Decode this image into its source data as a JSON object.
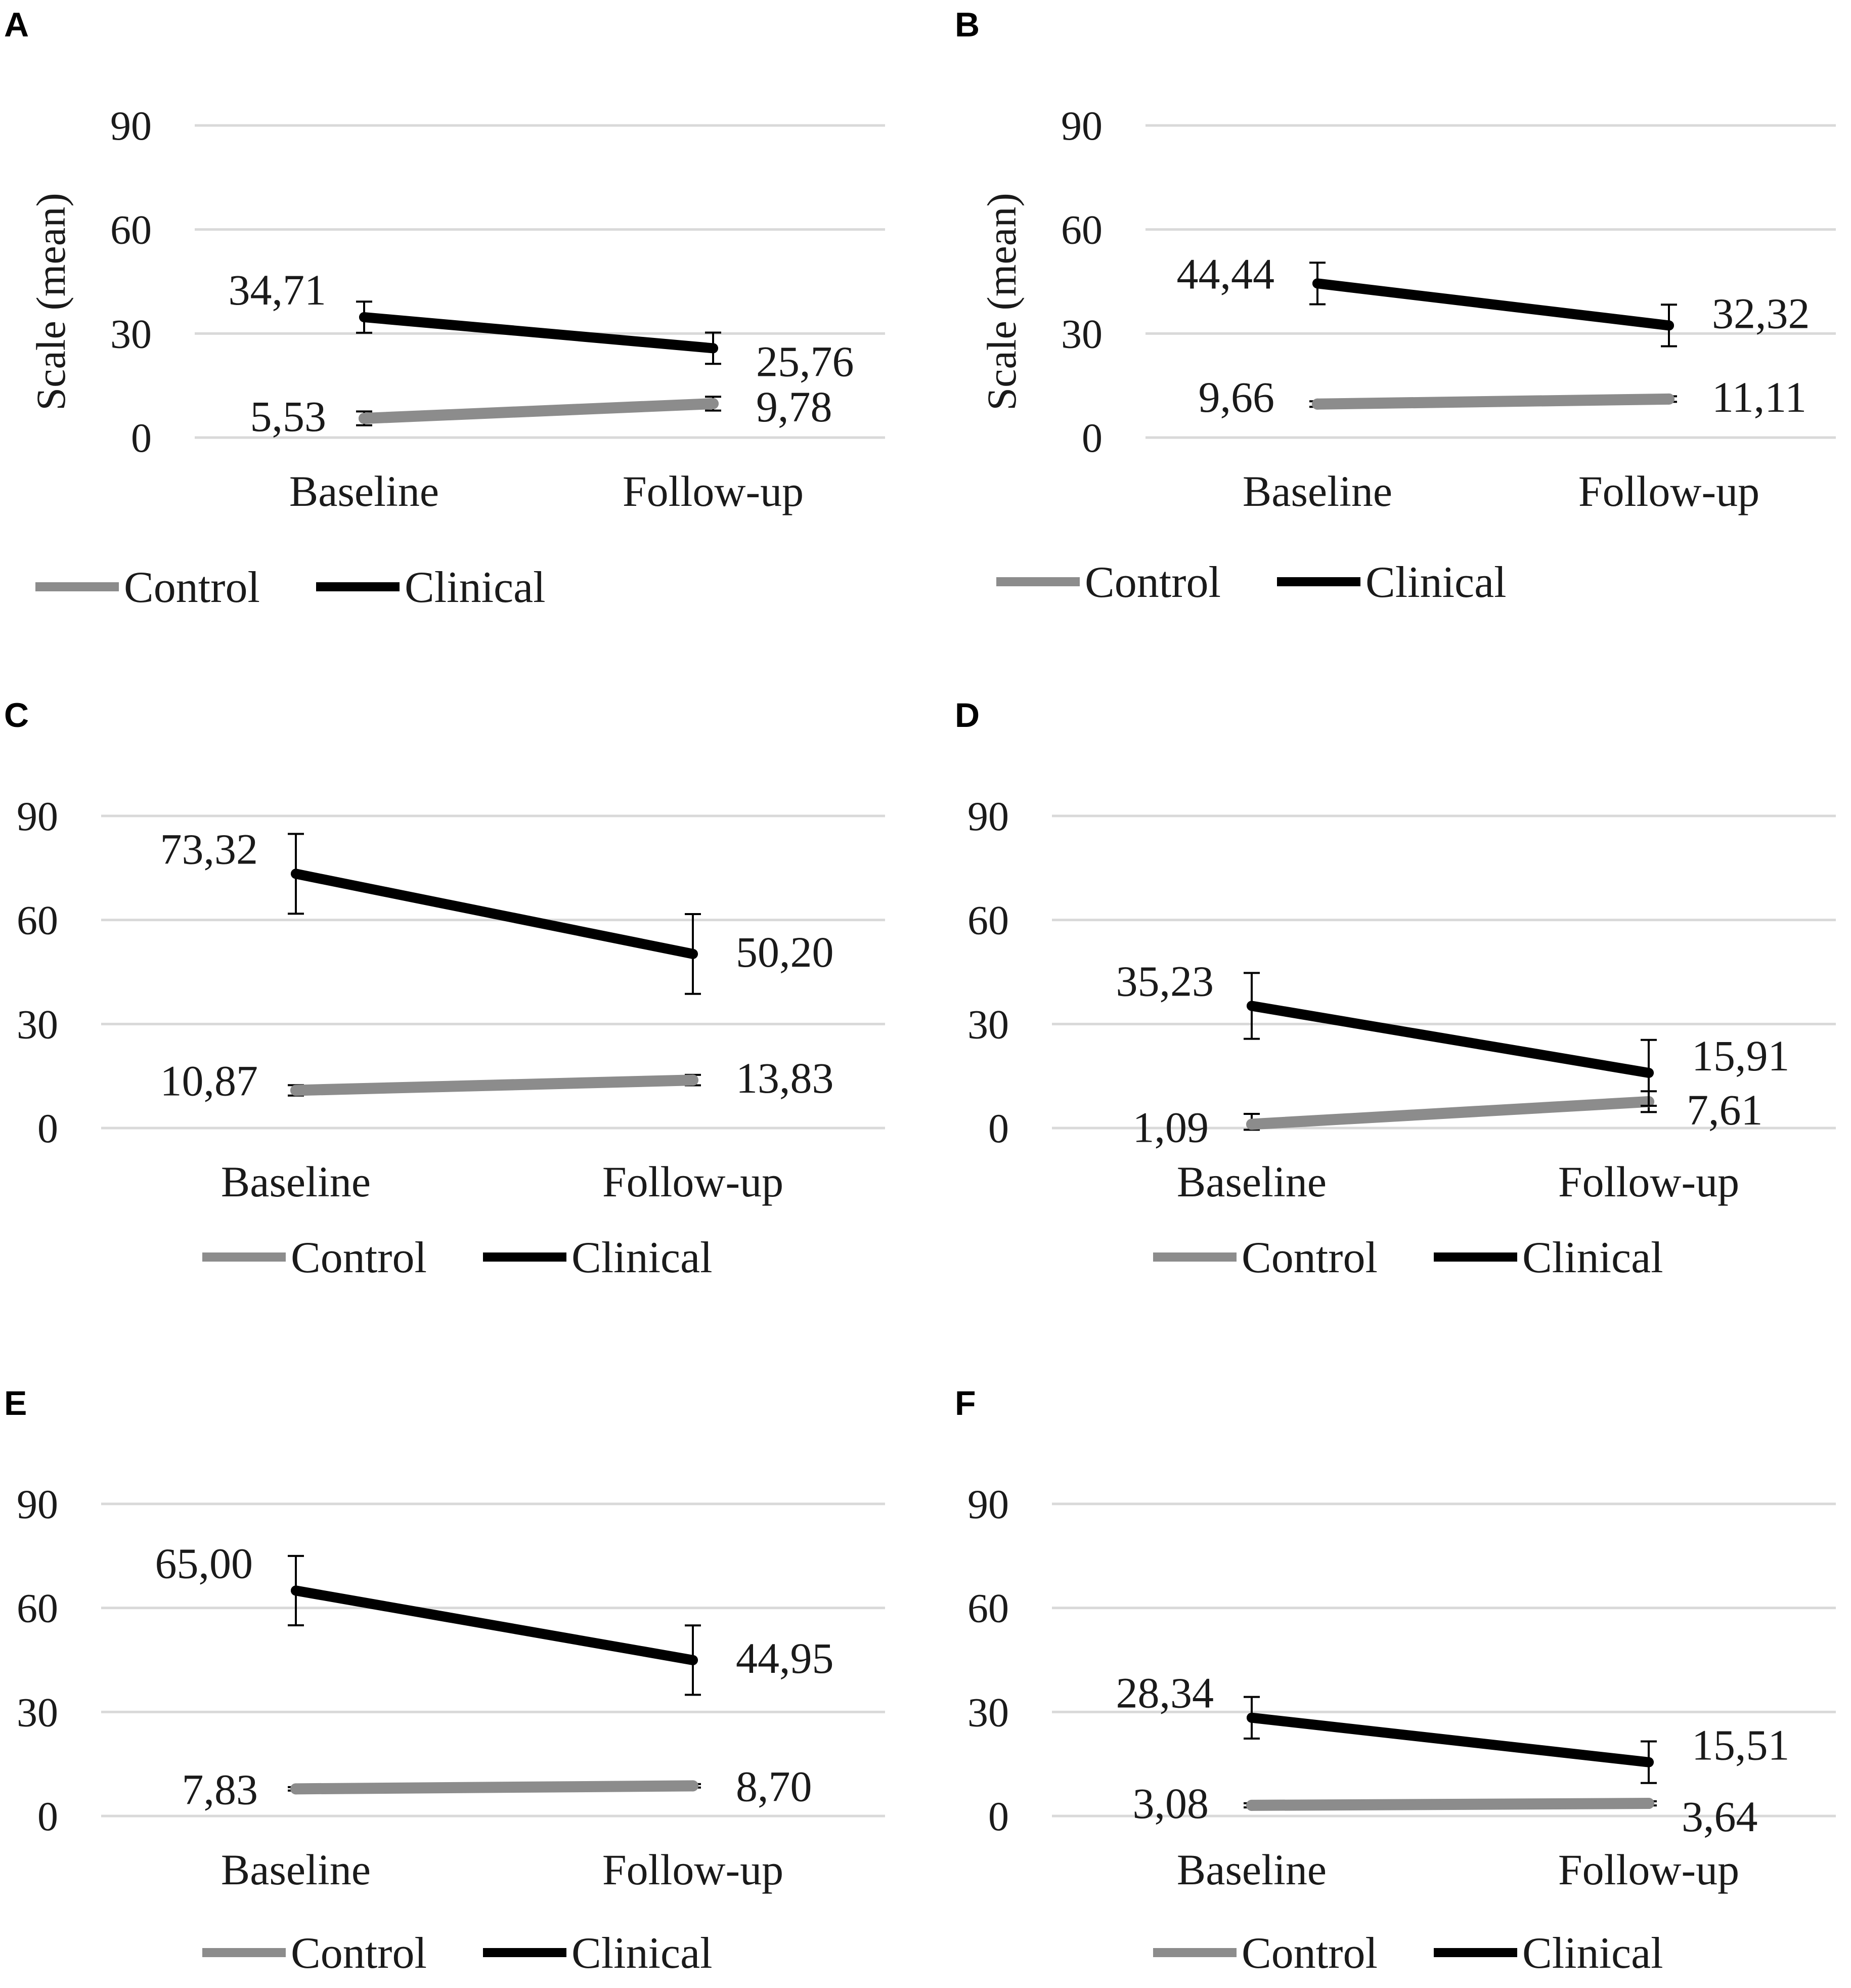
{
  "colors": {
    "control": "#8c8c8c",
    "clinical": "#000000",
    "grid": "#d9d9d9",
    "text": "#1a1a1a"
  },
  "chart_data": [
    {
      "panel": "A",
      "type": "line",
      "categories": [
        "Baseline",
        "Follow-up"
      ],
      "ylabel": "Scale (mean)",
      "ylim": [
        0,
        90
      ],
      "yticks": [
        "0",
        "30",
        "60",
        "90"
      ],
      "grid": true,
      "legend": "bottom-left",
      "series": [
        {
          "name": "Control",
          "values": [
            5.53,
            9.78
          ],
          "labels": [
            "5,53",
            "9,78"
          ],
          "errors": [
            2.0,
            2.0
          ]
        },
        {
          "name": "Clinical",
          "values": [
            34.71,
            25.76
          ],
          "labels": [
            "34,71",
            "25,76"
          ],
          "errors": [
            4.5,
            4.5
          ]
        }
      ]
    },
    {
      "panel": "B",
      "type": "line",
      "categories": [
        "Baseline",
        "Follow-up"
      ],
      "ylabel": "Scale (mean)",
      "ylim": [
        0,
        90
      ],
      "yticks": [
        "0",
        "30",
        "60",
        "90"
      ],
      "grid": true,
      "legend": "bottom-left",
      "series": [
        {
          "name": "Control",
          "values": [
            9.66,
            11.11
          ],
          "labels": [
            "9,66",
            "11,11"
          ],
          "errors": [
            0.8,
            0.8
          ]
        },
        {
          "name": "Clinical",
          "values": [
            44.44,
            32.32
          ],
          "labels": [
            "44,44",
            "32,32"
          ],
          "errors": [
            6.0,
            6.0
          ]
        }
      ]
    },
    {
      "panel": "C",
      "type": "line",
      "categories": [
        "Baseline",
        "Follow-up"
      ],
      "ylabel": "",
      "ylim": [
        0,
        90
      ],
      "yticks": [
        "0",
        "30",
        "60",
        "90"
      ],
      "grid": true,
      "legend": "bottom-center",
      "series": [
        {
          "name": "Control",
          "values": [
            10.87,
            13.83
          ],
          "labels": [
            "10,87",
            "13,83"
          ],
          "errors": [
            1.5,
            1.5
          ]
        },
        {
          "name": "Clinical",
          "values": [
            73.32,
            50.2
          ],
          "labels": [
            "73,32",
            "50,20"
          ],
          "errors": [
            11.5,
            11.5
          ]
        }
      ]
    },
    {
      "panel": "D",
      "type": "line",
      "categories": [
        "Baseline",
        "Follow-up"
      ],
      "ylabel": "",
      "ylim": [
        0,
        90
      ],
      "yticks": [
        "0",
        "30",
        "60",
        "90"
      ],
      "grid": true,
      "legend": "bottom-center",
      "series": [
        {
          "name": "Control",
          "values": [
            1.09,
            7.61
          ],
          "labels": [
            "1,09",
            "7,61"
          ],
          "errors": [
            3.0,
            3.0
          ]
        },
        {
          "name": "Clinical",
          "values": [
            35.23,
            15.91
          ],
          "labels": [
            "35,23",
            "15,91"
          ],
          "errors": [
            9.5,
            9.5
          ]
        }
      ]
    },
    {
      "panel": "E",
      "type": "line",
      "categories": [
        "Baseline",
        "Follow-up"
      ],
      "ylabel": "",
      "ylim": [
        0,
        90
      ],
      "yticks": [
        "0",
        "30",
        "60",
        "90"
      ],
      "grid": true,
      "legend": "bottom-center",
      "series": [
        {
          "name": "Control",
          "values": [
            7.83,
            8.7
          ],
          "labels": [
            "7,83",
            "8,70"
          ],
          "errors": [
            0.5,
            0.5
          ]
        },
        {
          "name": "Clinical",
          "values": [
            65.0,
            44.95
          ],
          "labels": [
            "65,00",
            "44,95"
          ],
          "errors": [
            10.0,
            10.0
          ]
        }
      ]
    },
    {
      "panel": "F",
      "type": "line",
      "categories": [
        "Baseline",
        "Follow-up"
      ],
      "ylabel": "",
      "ylim": [
        0,
        90
      ],
      "yticks": [
        "0",
        "30",
        "60",
        "90"
      ],
      "grid": true,
      "legend": "bottom-center",
      "series": [
        {
          "name": "Control",
          "values": [
            3.08,
            3.64
          ],
          "labels": [
            "3,08",
            "3,64"
          ],
          "errors": [
            0.6,
            0.6
          ]
        },
        {
          "name": "Clinical",
          "values": [
            28.34,
            15.51
          ],
          "labels": [
            "28,34",
            "15,51"
          ],
          "errors": [
            6.0,
            6.0
          ]
        }
      ]
    }
  ]
}
